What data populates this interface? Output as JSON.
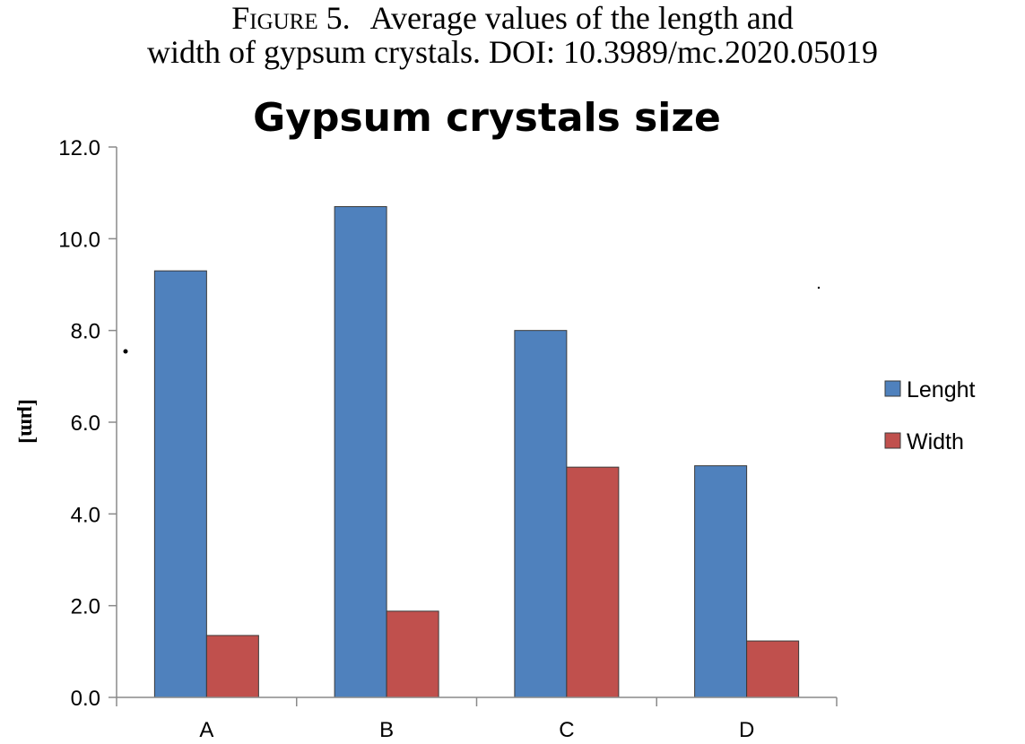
{
  "caption": {
    "figure_label": "Figure 5.",
    "line1_text": "Average values of the length and",
    "line2_text": "width of gypsum crystals. DOI: 10.3989/mc.2020.05019"
  },
  "chart_data": {
    "type": "bar",
    "title": "Gypsum crystals size",
    "xlabel": "",
    "ylabel": "[µm]",
    "categories": [
      "A",
      "B",
      "C",
      "D"
    ],
    "series": [
      {
        "name": "Lenght",
        "color": "#4F81BD",
        "values": [
          9.3,
          10.7,
          8.0,
          5.05
        ]
      },
      {
        "name": "Width",
        "color": "#C0504D",
        "values": [
          1.35,
          1.88,
          5.02,
          1.23
        ]
      }
    ],
    "ylim": [
      0,
      12
    ],
    "ytick_step": 2,
    "ytick_labels": [
      "0.0",
      "2.0",
      "4.0",
      "6.0",
      "8.0",
      "10.0",
      "12.0"
    ],
    "grid": false,
    "legend_position": "right"
  }
}
